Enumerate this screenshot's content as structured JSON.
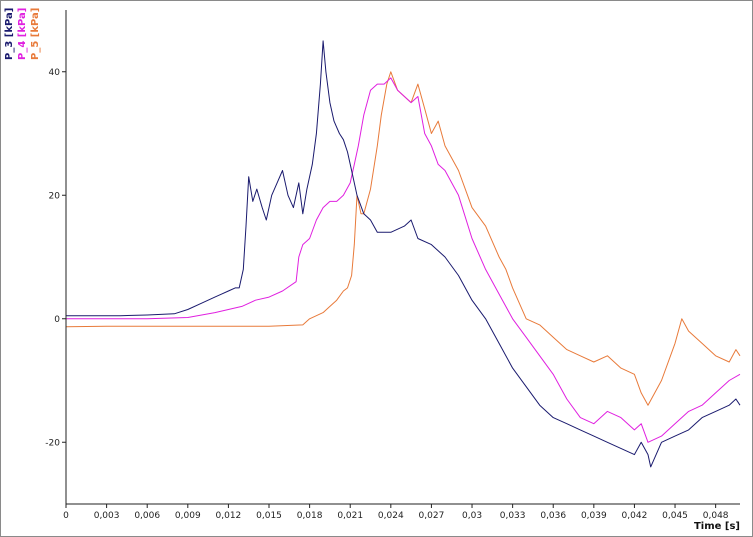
{
  "chart_data": {
    "type": "line",
    "xlabel": "Time [s]",
    "ylabel": "",
    "xlim": [
      0,
      0.0498
    ],
    "ylim": [
      -30,
      50
    ],
    "x_ticks": [
      0,
      0.003,
      0.006,
      0.009,
      0.012,
      0.015,
      0.018,
      0.021,
      0.024,
      0.027,
      0.03,
      0.033,
      0.036,
      0.039,
      0.042,
      0.045,
      0.048
    ],
    "x_tick_labels": [
      "0",
      "0,003",
      "0,006",
      "0,009",
      "0,012",
      "0,015",
      "0,018",
      "0,021",
      "0,024",
      "0,027",
      "0,03",
      "0,033",
      "0,036",
      "0,039",
      "0,042",
      "0,045",
      "0,048"
    ],
    "y_ticks": [
      -20,
      0,
      20,
      40
    ],
    "y_tick_labels": [
      "-20",
      "0",
      "20",
      "40"
    ],
    "grid": false,
    "legend": "vertical labels at top-left",
    "series": [
      {
        "name": "P_3 [kPa]",
        "color": "#1a1a6e",
        "points": [
          [
            0,
            0.5
          ],
          [
            0.002,
            0.5
          ],
          [
            0.004,
            0.5
          ],
          [
            0.006,
            0.6
          ],
          [
            0.008,
            0.8
          ],
          [
            0.009,
            1.5
          ],
          [
            0.01,
            2.5
          ],
          [
            0.011,
            3.5
          ],
          [
            0.0115,
            4
          ],
          [
            0.012,
            4.5
          ],
          [
            0.0125,
            5
          ],
          [
            0.0128,
            5
          ],
          [
            0.0131,
            8
          ],
          [
            0.0133,
            15
          ],
          [
            0.0135,
            23
          ],
          [
            0.0138,
            19
          ],
          [
            0.0141,
            21
          ],
          [
            0.0145,
            18
          ],
          [
            0.0148,
            16
          ],
          [
            0.0152,
            20
          ],
          [
            0.0156,
            22
          ],
          [
            0.016,
            24
          ],
          [
            0.0164,
            20
          ],
          [
            0.0168,
            18
          ],
          [
            0.0172,
            22
          ],
          [
            0.0175,
            17
          ],
          [
            0.0178,
            21
          ],
          [
            0.0182,
            25
          ],
          [
            0.0185,
            30
          ],
          [
            0.0188,
            38
          ],
          [
            0.019,
            45
          ],
          [
            0.0192,
            40
          ],
          [
            0.0195,
            35
          ],
          [
            0.0198,
            32
          ],
          [
            0.0202,
            30
          ],
          [
            0.0205,
            29
          ],
          [
            0.0208,
            27
          ],
          [
            0.0211,
            24
          ],
          [
            0.0215,
            20
          ],
          [
            0.022,
            17
          ],
          [
            0.0225,
            16
          ],
          [
            0.023,
            14
          ],
          [
            0.024,
            14
          ],
          [
            0.025,
            15
          ],
          [
            0.0255,
            16
          ],
          [
            0.026,
            13
          ],
          [
            0.027,
            12
          ],
          [
            0.028,
            10
          ],
          [
            0.029,
            7
          ],
          [
            0.03,
            3
          ],
          [
            0.031,
            0
          ],
          [
            0.032,
            -4
          ],
          [
            0.033,
            -8
          ],
          [
            0.034,
            -11
          ],
          [
            0.035,
            -14
          ],
          [
            0.036,
            -16
          ],
          [
            0.037,
            -17
          ],
          [
            0.038,
            -18
          ],
          [
            0.039,
            -19
          ],
          [
            0.04,
            -20
          ],
          [
            0.041,
            -21
          ],
          [
            0.042,
            -22
          ],
          [
            0.0425,
            -20
          ],
          [
            0.043,
            -22
          ],
          [
            0.0432,
            -24
          ],
          [
            0.044,
            -20
          ],
          [
            0.045,
            -19
          ],
          [
            0.046,
            -18
          ],
          [
            0.047,
            -16
          ],
          [
            0.048,
            -15
          ],
          [
            0.049,
            -14
          ],
          [
            0.0495,
            -13
          ],
          [
            0.0498,
            -14
          ]
        ]
      },
      {
        "name": "P_4 [kPa]",
        "color": "#e020e0",
        "points": [
          [
            0,
            0
          ],
          [
            0.003,
            0
          ],
          [
            0.006,
            0
          ],
          [
            0.009,
            0.2
          ],
          [
            0.011,
            1
          ],
          [
            0.012,
            1.5
          ],
          [
            0.013,
            2
          ],
          [
            0.014,
            3
          ],
          [
            0.015,
            3.5
          ],
          [
            0.016,
            4.5
          ],
          [
            0.017,
            6
          ],
          [
            0.0172,
            10
          ],
          [
            0.0175,
            12
          ],
          [
            0.018,
            13
          ],
          [
            0.0185,
            16
          ],
          [
            0.019,
            18
          ],
          [
            0.0195,
            19
          ],
          [
            0.02,
            19
          ],
          [
            0.0205,
            20
          ],
          [
            0.021,
            22
          ],
          [
            0.0213,
            25
          ],
          [
            0.0216,
            28
          ],
          [
            0.022,
            33
          ],
          [
            0.0225,
            37
          ],
          [
            0.023,
            38
          ],
          [
            0.0235,
            38
          ],
          [
            0.024,
            39
          ],
          [
            0.0245,
            37
          ],
          [
            0.025,
            36
          ],
          [
            0.0255,
            35
          ],
          [
            0.026,
            36
          ],
          [
            0.0265,
            30
          ],
          [
            0.027,
            28
          ],
          [
            0.0275,
            25
          ],
          [
            0.028,
            24
          ],
          [
            0.029,
            20
          ],
          [
            0.03,
            13
          ],
          [
            0.031,
            8
          ],
          [
            0.032,
            4
          ],
          [
            0.033,
            0
          ],
          [
            0.034,
            -3
          ],
          [
            0.035,
            -6
          ],
          [
            0.036,
            -9
          ],
          [
            0.037,
            -13
          ],
          [
            0.038,
            -16
          ],
          [
            0.039,
            -17
          ],
          [
            0.04,
            -15
          ],
          [
            0.041,
            -16
          ],
          [
            0.042,
            -18
          ],
          [
            0.0425,
            -17
          ],
          [
            0.043,
            -20
          ],
          [
            0.044,
            -19
          ],
          [
            0.045,
            -17
          ],
          [
            0.046,
            -15
          ],
          [
            0.047,
            -14
          ],
          [
            0.048,
            -12
          ],
          [
            0.049,
            -10
          ],
          [
            0.0498,
            -9
          ]
        ]
      },
      {
        "name": "P_5 [kPa]",
        "color": "#e87a3a",
        "points": [
          [
            0,
            -1.3
          ],
          [
            0.003,
            -1.2
          ],
          [
            0.006,
            -1.2
          ],
          [
            0.009,
            -1.2
          ],
          [
            0.012,
            -1.2
          ],
          [
            0.015,
            -1.2
          ],
          [
            0.0175,
            -1
          ],
          [
            0.018,
            0
          ],
          [
            0.019,
            1
          ],
          [
            0.0195,
            2
          ],
          [
            0.02,
            3
          ],
          [
            0.0205,
            4.5
          ],
          [
            0.0208,
            5
          ],
          [
            0.0211,
            7
          ],
          [
            0.0213,
            12
          ],
          [
            0.0215,
            20
          ],
          [
            0.0218,
            17
          ],
          [
            0.022,
            17
          ],
          [
            0.0225,
            21
          ],
          [
            0.023,
            28
          ],
          [
            0.0233,
            33
          ],
          [
            0.0237,
            38
          ],
          [
            0.024,
            40
          ],
          [
            0.0245,
            37
          ],
          [
            0.025,
            36
          ],
          [
            0.0255,
            35
          ],
          [
            0.026,
            38
          ],
          [
            0.0265,
            34
          ],
          [
            0.027,
            30
          ],
          [
            0.0275,
            32
          ],
          [
            0.028,
            28
          ],
          [
            0.029,
            24
          ],
          [
            0.03,
            18
          ],
          [
            0.031,
            15
          ],
          [
            0.032,
            10
          ],
          [
            0.0325,
            8
          ],
          [
            0.033,
            5
          ],
          [
            0.034,
            0
          ],
          [
            0.035,
            -1
          ],
          [
            0.036,
            -3
          ],
          [
            0.037,
            -5
          ],
          [
            0.038,
            -6
          ],
          [
            0.039,
            -7
          ],
          [
            0.04,
            -6
          ],
          [
            0.041,
            -8
          ],
          [
            0.042,
            -9
          ],
          [
            0.0425,
            -12
          ],
          [
            0.043,
            -14
          ],
          [
            0.044,
            -10
          ],
          [
            0.045,
            -4
          ],
          [
            0.0455,
            0
          ],
          [
            0.046,
            -2
          ],
          [
            0.047,
            -4
          ],
          [
            0.048,
            -6
          ],
          [
            0.049,
            -7
          ],
          [
            0.0495,
            -5
          ],
          [
            0.0498,
            -6
          ]
        ]
      }
    ]
  }
}
